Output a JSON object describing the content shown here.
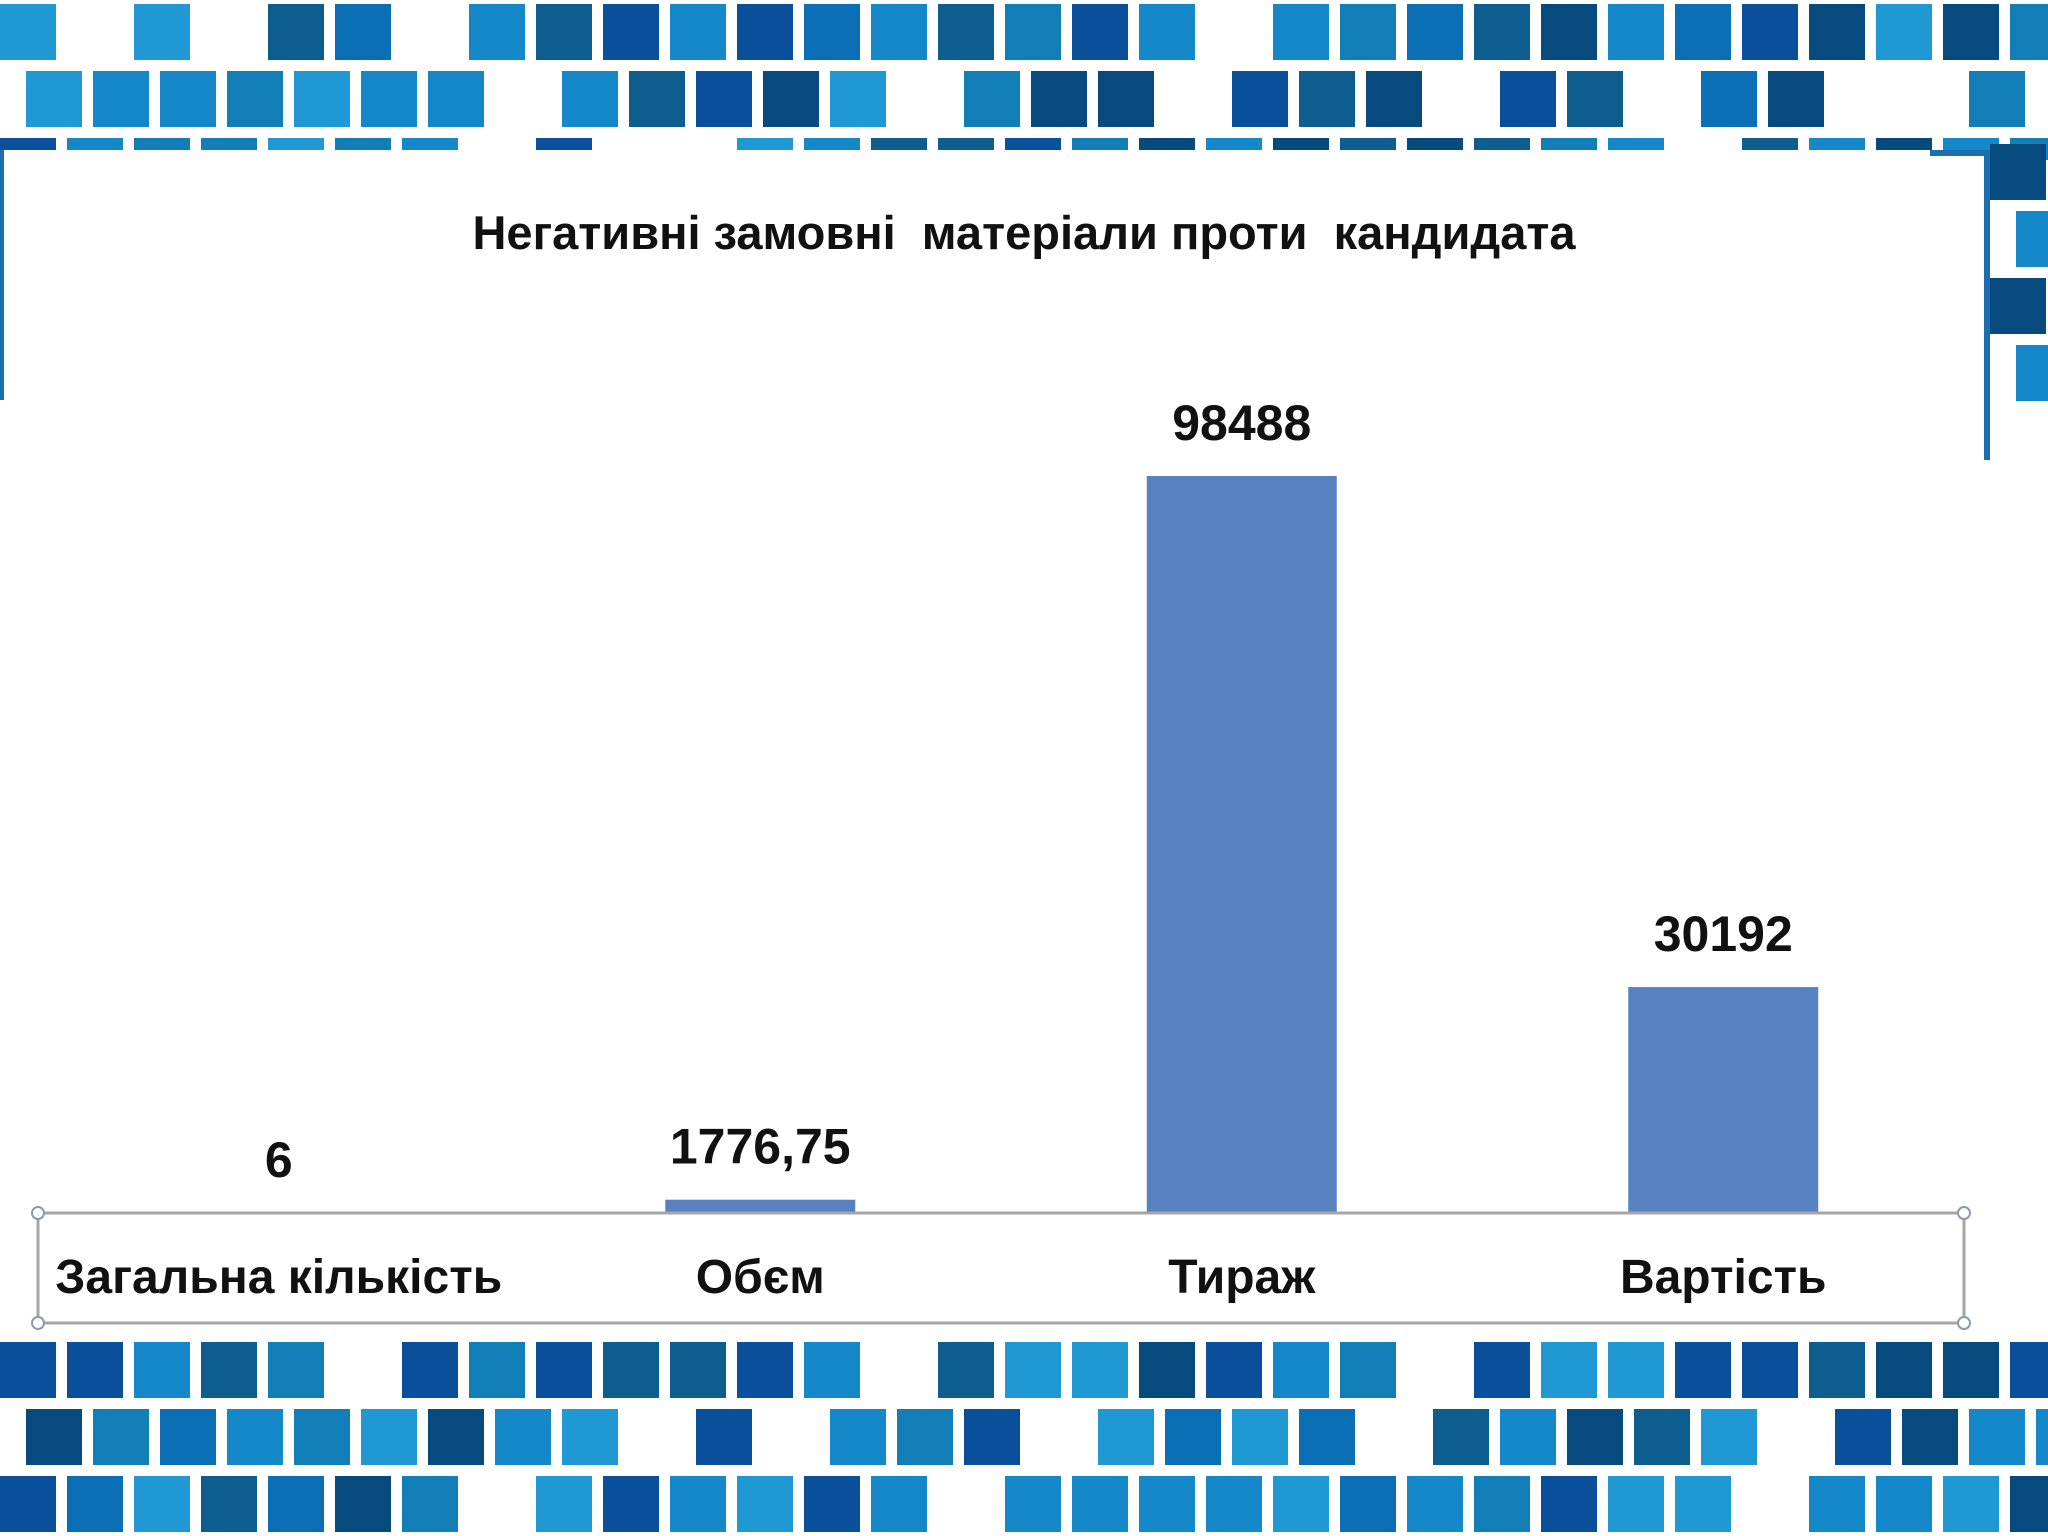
{
  "colors": {
    "bar": "#5682bf",
    "axis": "#a6a6a6",
    "text": "#111111",
    "mosaic": [
      "#0a4f9a",
      "#0b6fb5",
      "#1488c9",
      "#0d5e8e",
      "#127eb8",
      "#064a7e",
      "#2098d4"
    ]
  },
  "chart_data": {
    "type": "bar",
    "title": "Негативні замовні  матеріали проти  кандидата",
    "categories": [
      "Загальна кількість",
      "Обєм",
      "Тираж",
      "Вартість"
    ],
    "values": [
      6,
      1776.75,
      98488,
      30192
    ],
    "data_labels": [
      "6",
      "1776,75",
      "98488",
      "30192"
    ],
    "xlabel": "",
    "ylabel": "",
    "ylim": [
      0,
      100000
    ],
    "grid": false,
    "legend": "none"
  }
}
